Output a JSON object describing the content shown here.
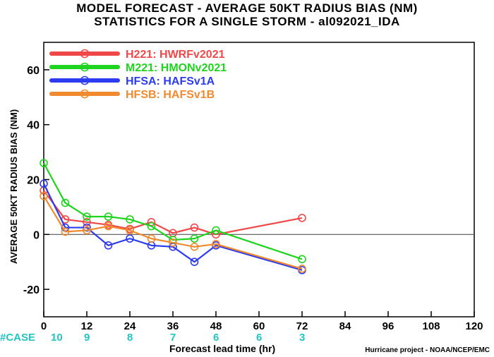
{
  "title_line1": "MODEL FORECAST - AVERAGE 50KT RADIUS BIAS (NM)",
  "title_line2": "STATISTICS FOR A SINGLE STORM - al092021_IDA",
  "credit": "Hurricane project - NOAA/NCEP/EMC",
  "case_counts": {
    "label": "#CASE",
    "entries": [
      {
        "hour": 0,
        "count": "10"
      },
      {
        "hour": 12,
        "count": "9"
      },
      {
        "hour": 24,
        "count": "8"
      },
      {
        "hour": 36,
        "count": "7"
      },
      {
        "hour": 48,
        "count": "6"
      },
      {
        "hour": 60,
        "count": "6"
      },
      {
        "hour": 72,
        "count": "3"
      }
    ]
  },
  "chart_data": {
    "type": "line",
    "title": "MODEL FORECAST - AVERAGE 50KT RADIUS BIAS (NM)",
    "subtitle": "STATISTICS FOR A SINGLE STORM - al092021_IDA",
    "xlabel": "Forecast lead time (hr)",
    "ylabel": "AVERAGE 50KT RADIUS BIAS (NM)",
    "xlim": [
      0,
      120
    ],
    "ylim": [
      -30,
      70
    ],
    "xticks": [
      0,
      12,
      24,
      36,
      48,
      60,
      72,
      84,
      96,
      108,
      120
    ],
    "yticks": [
      -20,
      0,
      20,
      40,
      60
    ],
    "zero_line": true,
    "legend_position": "top-left",
    "series": [
      {
        "name": "H221: HWRFv2021",
        "color": "#f04848",
        "x": [
          0,
          6,
          12,
          18,
          24,
          30,
          36,
          42,
          48,
          72
        ],
        "y": [
          16,
          5.5,
          4.5,
          3.5,
          2,
          4.5,
          0.5,
          2.5,
          0,
          6
        ]
      },
      {
        "name": "M221: HMONv2021",
        "color": "#1ed41e",
        "x": [
          0,
          6,
          12,
          18,
          24,
          30,
          36,
          42,
          48,
          72
        ],
        "y": [
          26,
          11.5,
          6.5,
          6.5,
          5.5,
          3,
          -2,
          -1.5,
          1.5,
          -9
        ]
      },
      {
        "name": "HFSA: HAFSv1A",
        "color": "#2c3cf0",
        "x": [
          0,
          6,
          12,
          18,
          24,
          30,
          36,
          42,
          48,
          72
        ],
        "y": [
          18.5,
          2.5,
          2.5,
          -4,
          -1.5,
          -4,
          -4.5,
          -10,
          -4,
          -13
        ]
      },
      {
        "name": "HFSB: HAFSv1B",
        "color": "#f08a30",
        "x": [
          0,
          6,
          12,
          18,
          24,
          30,
          36,
          42,
          48,
          72
        ],
        "y": [
          14,
          1,
          1.5,
          3,
          1.5,
          -1.5,
          -3,
          -4.5,
          -3.5,
          -12.5
        ]
      }
    ]
  }
}
